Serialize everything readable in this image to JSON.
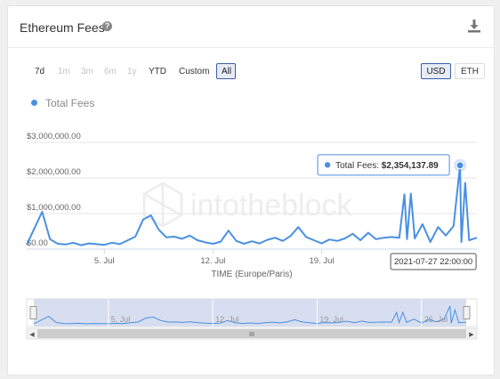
{
  "header": {
    "title": "Ethereum Fees",
    "help_icon": "question-circle-icon",
    "download_icon": "download-icon"
  },
  "range_buttons": [
    {
      "label": "7d",
      "state": "normal"
    },
    {
      "label": "1m",
      "state": "disabled"
    },
    {
      "label": "3m",
      "state": "disabled"
    },
    {
      "label": "6m",
      "state": "disabled"
    },
    {
      "label": "1y",
      "state": "disabled"
    },
    {
      "label": "YTD",
      "state": "normal"
    },
    {
      "label": "Custom",
      "state": "normal"
    },
    {
      "label": "All",
      "state": "active"
    }
  ],
  "currency_buttons": [
    {
      "label": "USD",
      "state": "active"
    },
    {
      "label": "ETH",
      "state": "normal"
    }
  ],
  "watermark": "intotheblock",
  "tooltip": {
    "series": "Total Fees: ",
    "value": "$2,354,137.89"
  },
  "crosshair_label": "2021-07-27 22:00:00",
  "navigator": {
    "labels": [
      "5. Jul",
      "12. Jul",
      "19. Jul",
      "26. Jul"
    ]
  },
  "colors": {
    "series": "#4a90e2",
    "active_border": "#3a5fa8",
    "navigator_fill": "#cdd6eb"
  },
  "chart_data": {
    "type": "line",
    "xlabel": "TIME (Europe/Paris)",
    "x_tick_labels": [
      "5. Jul",
      "12. Jul",
      "19. Jul"
    ],
    "y_tick_labels": [
      "$0.00",
      "$1,000,000.00",
      "$2,000,000.00",
      "$3,000,000.00"
    ],
    "ylim": [
      0,
      3000000
    ],
    "xlim": [
      "2021-06-30",
      "2021-07-29"
    ],
    "grid": true,
    "legend": "top-left",
    "series": [
      {
        "name": "Total Fees",
        "points": [
          [
            "2021-06-30",
            120000
          ],
          [
            "2021-07-01",
            1050000
          ],
          [
            "2021-07-01 12:00",
            280000
          ],
          [
            "2021-07-02",
            150000
          ],
          [
            "2021-07-02 12:00",
            130000
          ],
          [
            "2021-07-03",
            180000
          ],
          [
            "2021-07-03 12:00",
            110000
          ],
          [
            "2021-07-04",
            160000
          ],
          [
            "2021-07-05",
            120000
          ],
          [
            "2021-07-05 12:00",
            180000
          ],
          [
            "2021-07-06",
            140000
          ],
          [
            "2021-07-07",
            350000
          ],
          [
            "2021-07-07 12:00",
            830000
          ],
          [
            "2021-07-08",
            950000
          ],
          [
            "2021-07-08 12:00",
            550000
          ],
          [
            "2021-07-09",
            330000
          ],
          [
            "2021-07-09 12:00",
            350000
          ],
          [
            "2021-07-10",
            290000
          ],
          [
            "2021-07-10 12:00",
            380000
          ],
          [
            "2021-07-11",
            250000
          ],
          [
            "2021-07-11 12:00",
            190000
          ],
          [
            "2021-07-12",
            150000
          ],
          [
            "2021-07-12 12:00",
            210000
          ],
          [
            "2021-07-13",
            520000
          ],
          [
            "2021-07-13 12:00",
            230000
          ],
          [
            "2021-07-14",
            150000
          ],
          [
            "2021-07-14 12:00",
            220000
          ],
          [
            "2021-07-15",
            160000
          ],
          [
            "2021-07-15 12:00",
            260000
          ],
          [
            "2021-07-16",
            320000
          ],
          [
            "2021-07-16 12:00",
            230000
          ],
          [
            "2021-07-17",
            370000
          ],
          [
            "2021-07-17 12:00",
            620000
          ],
          [
            "2021-07-18",
            340000
          ],
          [
            "2021-07-18 12:00",
            250000
          ],
          [
            "2021-07-19",
            160000
          ],
          [
            "2021-07-19 12:00",
            270000
          ],
          [
            "2021-07-20",
            230000
          ],
          [
            "2021-07-20 12:00",
            300000
          ],
          [
            "2021-07-21",
            430000
          ],
          [
            "2021-07-21 12:00",
            250000
          ],
          [
            "2021-07-22",
            460000
          ],
          [
            "2021-07-22 12:00",
            280000
          ],
          [
            "2021-07-23",
            320000
          ],
          [
            "2021-07-23 12:00",
            340000
          ],
          [
            "2021-07-24",
            320000
          ],
          [
            "2021-07-24 08:00",
            1540000
          ],
          [
            "2021-07-24 12:00",
            280000
          ],
          [
            "2021-07-24 18:00",
            1560000
          ],
          [
            "2021-07-25",
            300000
          ],
          [
            "2021-07-25 12:00",
            700000
          ],
          [
            "2021-07-26",
            200000
          ],
          [
            "2021-07-26 12:00",
            620000
          ],
          [
            "2021-07-27",
            380000
          ],
          [
            "2021-07-27 12:00",
            650000
          ],
          [
            "2021-07-27 22:00",
            2354137.89
          ],
          [
            "2021-07-28",
            200000
          ],
          [
            "2021-07-28 06:00",
            1860000
          ],
          [
            "2021-07-28 12:00",
            250000
          ],
          [
            "2021-07-29",
            320000
          ]
        ]
      }
    ]
  }
}
